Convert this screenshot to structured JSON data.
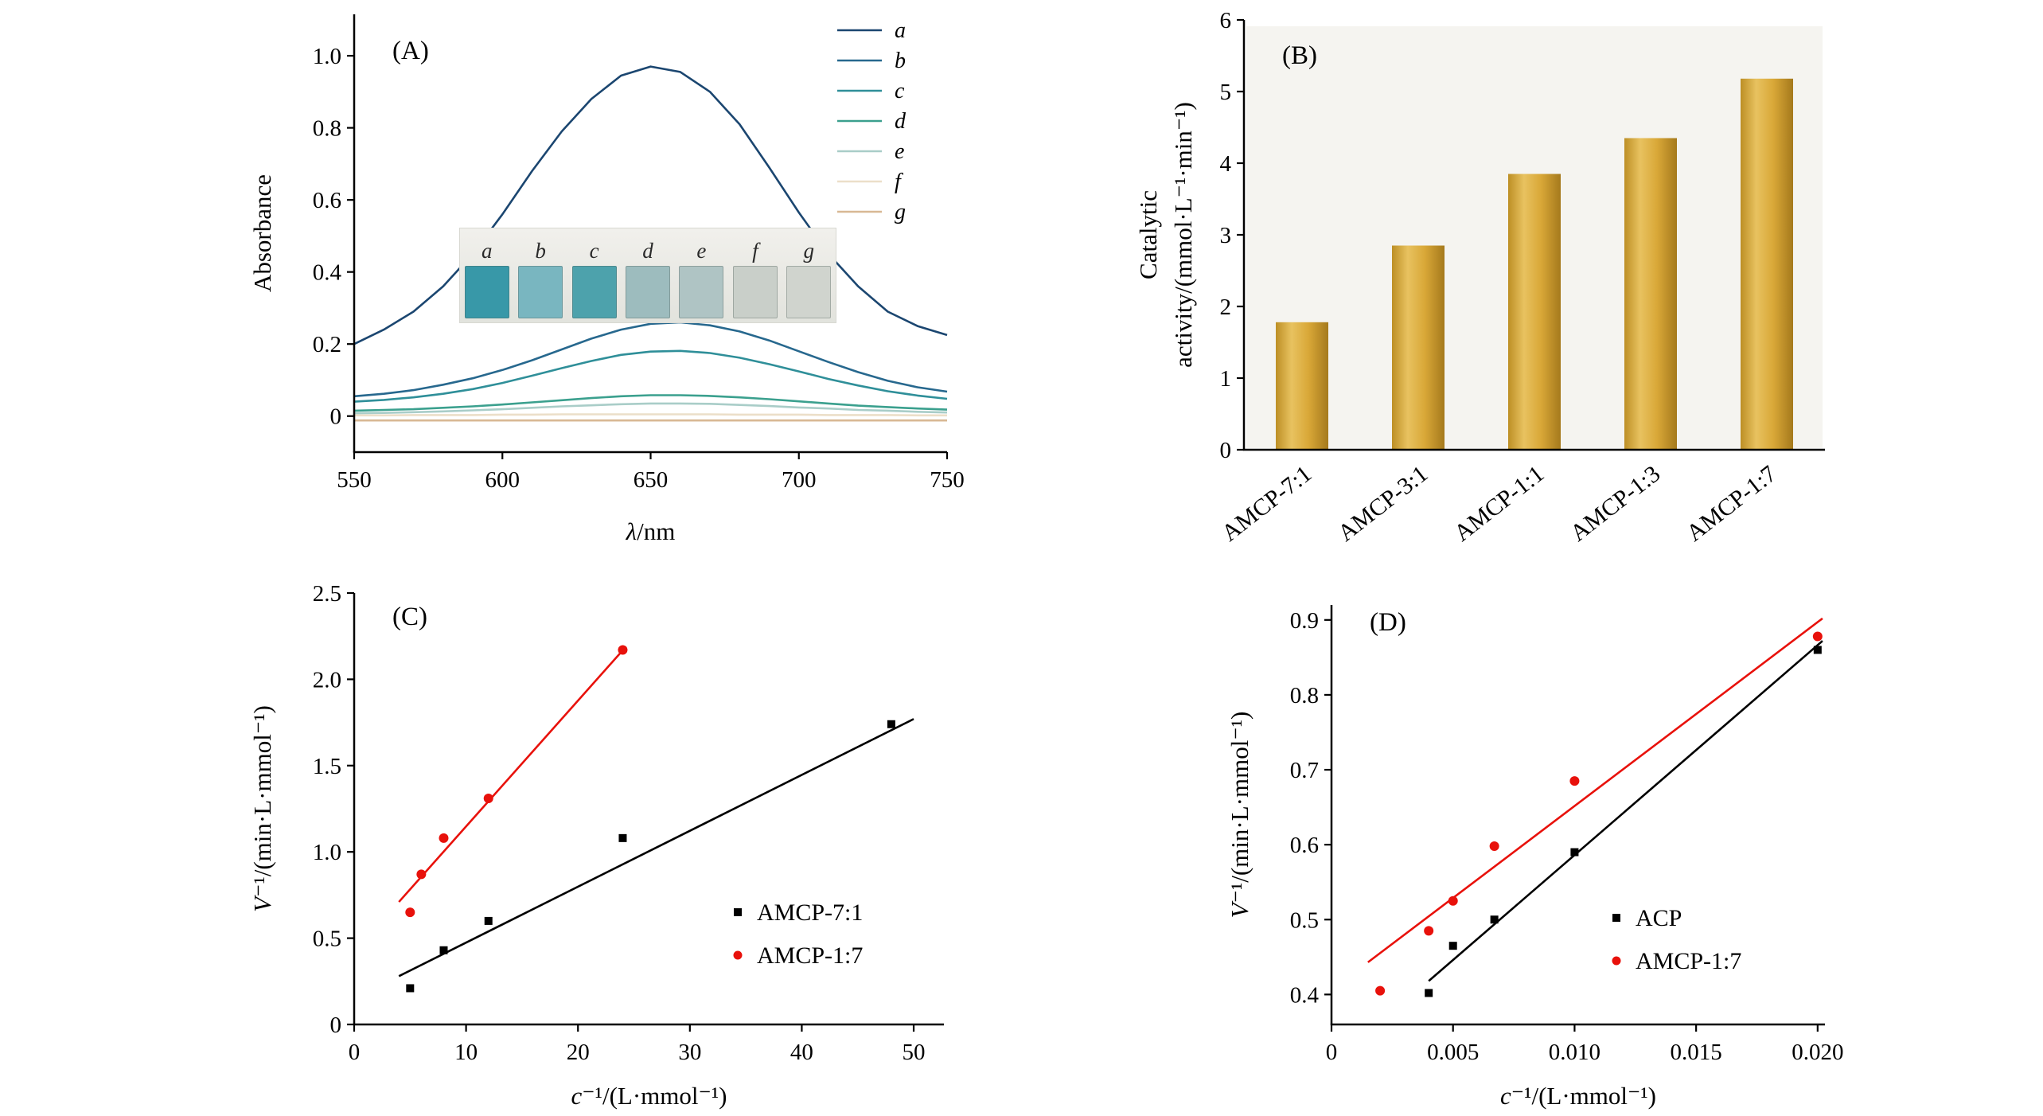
{
  "figure": {
    "background": "#ffffff"
  },
  "chart_data": [
    {
      "id": "A",
      "type": "line",
      "panel_label": "(A)",
      "xlabel": "λ/nm",
      "ylabel": "Absorbance",
      "xlim": [
        550,
        750
      ],
      "ylim": [
        -0.1,
        1.115
      ],
      "xticks": [
        550,
        600,
        650,
        700,
        750
      ],
      "xtick_labels": [
        "550",
        "600",
        "650",
        "700",
        "750"
      ],
      "yticks": [
        0,
        0.2,
        0.4,
        0.6,
        0.8,
        1.0
      ],
      "ytick_labels": [
        "0",
        "0.2",
        "0.4",
        "0.6",
        "0.8",
        "1.0"
      ],
      "x": [
        550,
        560,
        570,
        580,
        590,
        600,
        610,
        620,
        630,
        640,
        650,
        660,
        670,
        680,
        690,
        700,
        710,
        720,
        730,
        740,
        750
      ],
      "series": [
        {
          "name": "a",
          "color": "#1b4670",
          "values": [
            0.2,
            0.24,
            0.29,
            0.36,
            0.45,
            0.56,
            0.68,
            0.79,
            0.88,
            0.945,
            0.97,
            0.955,
            0.9,
            0.81,
            0.69,
            0.565,
            0.45,
            0.36,
            0.29,
            0.25,
            0.225
          ]
        },
        {
          "name": "b",
          "color": "#27688e",
          "values": [
            0.055,
            0.062,
            0.072,
            0.087,
            0.105,
            0.128,
            0.155,
            0.185,
            0.215,
            0.24,
            0.256,
            0.26,
            0.252,
            0.235,
            0.21,
            0.18,
            0.15,
            0.122,
            0.098,
            0.08,
            0.068
          ]
        },
        {
          "name": "c",
          "color": "#2f8f99",
          "values": [
            0.04,
            0.045,
            0.052,
            0.062,
            0.075,
            0.092,
            0.112,
            0.133,
            0.153,
            0.17,
            0.179,
            0.181,
            0.175,
            0.162,
            0.144,
            0.124,
            0.103,
            0.085,
            0.069,
            0.057,
            0.048
          ]
        },
        {
          "name": "d",
          "color": "#3ba08e",
          "values": [
            0.015,
            0.017,
            0.019,
            0.023,
            0.027,
            0.032,
            0.038,
            0.044,
            0.05,
            0.055,
            0.058,
            0.058,
            0.056,
            0.052,
            0.047,
            0.041,
            0.035,
            0.029,
            0.025,
            0.021,
            0.018
          ]
        },
        {
          "name": "e",
          "color": "#a9cdc8",
          "values": [
            0.008,
            0.009,
            0.011,
            0.013,
            0.016,
            0.019,
            0.023,
            0.027,
            0.03,
            0.033,
            0.035,
            0.035,
            0.034,
            0.031,
            0.028,
            0.024,
            0.021,
            0.017,
            0.015,
            0.012,
            0.01
          ]
        },
        {
          "name": "f",
          "color": "#ecdfc9",
          "values": [
            0.002,
            0.002,
            0.003,
            0.003,
            0.003,
            0.004,
            0.004,
            0.005,
            0.005,
            0.005,
            0.005,
            0.005,
            0.005,
            0.004,
            0.004,
            0.004,
            0.003,
            0.003,
            0.003,
            0.002,
            0.002
          ]
        },
        {
          "name": "g",
          "color": "#d8b894",
          "values": [
            -0.012,
            -0.012,
            -0.012,
            -0.012,
            -0.012,
            -0.012,
            -0.012,
            -0.012,
            -0.012,
            -0.012,
            -0.012,
            -0.012,
            -0.012,
            -0.012,
            -0.012,
            -0.012,
            -0.012,
            -0.012,
            -0.012,
            -0.012,
            -0.012
          ]
        }
      ],
      "inset": {
        "labels": [
          "a",
          "b",
          "c",
          "d",
          "e",
          "f",
          "g"
        ],
        "cuvette_colors": [
          "#3898a8",
          "#79b6c0",
          "#4da2ac",
          "#9dbcbe",
          "#afc4c4",
          "#c9cfc9",
          "#d0d4ce"
        ]
      }
    },
    {
      "id": "B",
      "type": "bar",
      "panel_label": "(B)",
      "ylabel_lines": [
        "Catalytic",
        "activity/(mmol·L⁻¹·min⁻¹)"
      ],
      "categories": [
        "AMCP-7:1",
        "AMCP-3:1",
        "AMCP-1:1",
        "AMCP-1:3",
        "AMCP-1:7"
      ],
      "values": [
        1.78,
        2.85,
        3.85,
        4.35,
        5.18
      ],
      "ylim": [
        0,
        6
      ],
      "yticks": [
        0,
        1,
        2,
        3,
        4,
        5,
        6
      ],
      "ytick_labels": [
        "0",
        "1",
        "2",
        "3",
        "4",
        "5",
        "6"
      ],
      "bar_gradient": [
        "#bd8f25",
        "#e8c260",
        "#d9a838",
        "#a5791c"
      ],
      "plot_background": "#f5f4f0"
    },
    {
      "id": "C",
      "type": "scatter",
      "panel_label": "(C)",
      "xlabel": "c⁻¹/(L·mmol⁻¹)",
      "ylabel": "V⁻¹/(min·L·mmol⁻¹)",
      "xlim": [
        0,
        52.7
      ],
      "ylim": [
        0,
        2.5
      ],
      "xticks": [
        0,
        10,
        20,
        30,
        40,
        50
      ],
      "xtick_labels": [
        "0",
        "10",
        "20",
        "30",
        "40",
        "50"
      ],
      "yticks": [
        0,
        0.5,
        1.0,
        1.5,
        2.0,
        2.5
      ],
      "ytick_labels": [
        "0",
        "0.5",
        "1.0",
        "1.5",
        "2.0",
        "2.5"
      ],
      "series": [
        {
          "name": "AMCP-7:1",
          "marker": "square",
          "color": "#000000",
          "points": [
            [
              5,
              0.21
            ],
            [
              8,
              0.43
            ],
            [
              12,
              0.6
            ],
            [
              24,
              1.08
            ],
            [
              48,
              1.74
            ]
          ],
          "fit_line": [
            [
              4,
              0.28
            ],
            [
              50,
              1.77
            ]
          ]
        },
        {
          "name": "AMCP-1:7",
          "marker": "circle",
          "color": "#e8110b",
          "points": [
            [
              5,
              0.65
            ],
            [
              6,
              0.87
            ],
            [
              8,
              1.08
            ],
            [
              12,
              1.31
            ],
            [
              24,
              2.17
            ]
          ],
          "fit_line": [
            [
              4,
              0.71
            ],
            [
              24.3,
              2.19
            ]
          ]
        }
      ]
    },
    {
      "id": "D",
      "type": "scatter",
      "panel_label": "(D)",
      "xlabel": "c⁻¹/(L·mmol⁻¹)",
      "ylabel": "V⁻¹/(min·L·mmol⁻¹)",
      "xlim": [
        0,
        0.0203
      ],
      "ylim": [
        0.36,
        0.92
      ],
      "xticks": [
        0,
        0.005,
        0.01,
        0.015,
        0.02
      ],
      "xtick_labels": [
        "0",
        "0.005",
        "0.010",
        "0.015",
        "0.020"
      ],
      "yticks": [
        0.4,
        0.5,
        0.6,
        0.7,
        0.8,
        0.9
      ],
      "ytick_labels": [
        "0.4",
        "0.5",
        "0.6",
        "0.7",
        "0.8",
        "0.9"
      ],
      "series": [
        {
          "name": "ACP",
          "marker": "square",
          "color": "#000000",
          "points": [
            [
              0.004,
              0.402
            ],
            [
              0.005,
              0.465
            ],
            [
              0.0067,
              0.5
            ],
            [
              0.01,
              0.59
            ],
            [
              0.02,
              0.86
            ]
          ],
          "fit_line": [
            [
              0.004,
              0.418
            ],
            [
              0.0202,
              0.872
            ]
          ]
        },
        {
          "name": "AMCP-1:7",
          "marker": "circle",
          "color": "#e8110b",
          "points": [
            [
              0.002,
              0.405
            ],
            [
              0.004,
              0.485
            ],
            [
              0.005,
              0.525
            ],
            [
              0.0067,
              0.598
            ],
            [
              0.01,
              0.685
            ],
            [
              0.02,
              0.878
            ]
          ],
          "fit_line": [
            [
              0.0015,
              0.443
            ],
            [
              0.0202,
              0.902
            ]
          ]
        }
      ]
    }
  ]
}
